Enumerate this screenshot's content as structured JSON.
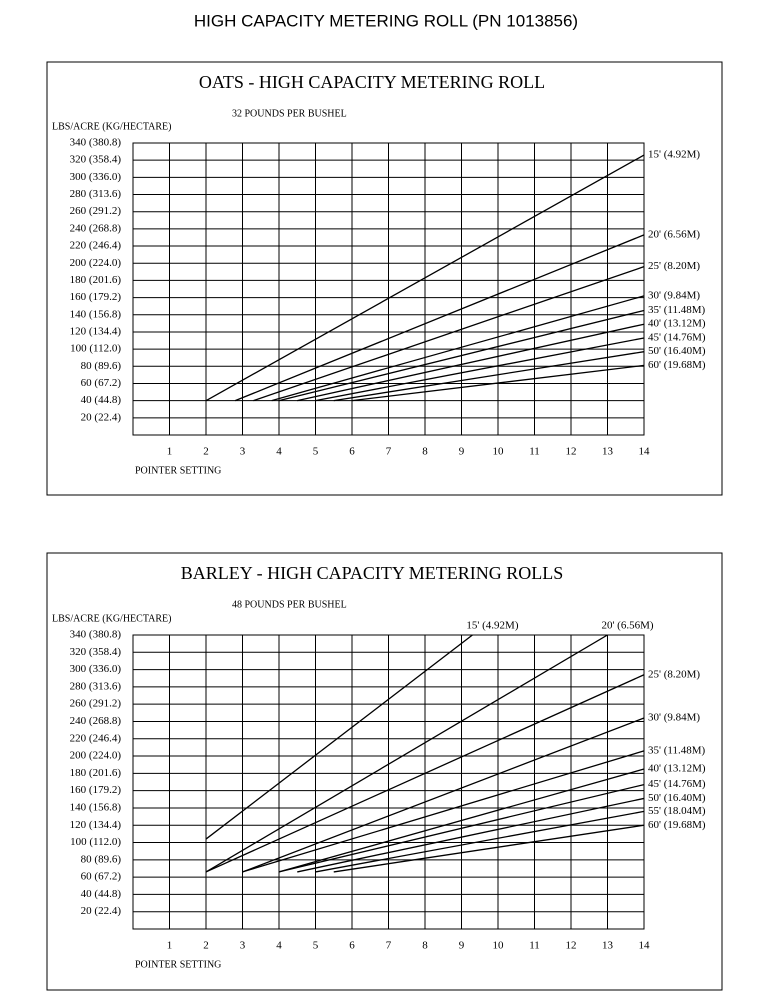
{
  "title": "HIGH CAPACITY METERING ROLL  (PN  1013856)",
  "chart_data": [
    {
      "type": "line",
      "title": "OATS - HIGH CAPACITY METERING ROLL",
      "subtitle": "32 POUNDS PER BUSHEL",
      "y_label": "LBS/ACRE (KG/HECTARE)",
      "x_label": "POINTER SETTING",
      "color": "#000000",
      "grid": true,
      "xlim": [
        0,
        14
      ],
      "xticks": [
        1,
        2,
        3,
        4,
        5,
        6,
        7,
        8,
        9,
        10,
        11,
        12,
        13,
        14
      ],
      "ylim": [
        0,
        340
      ],
      "yticks": [
        {
          "value": 340,
          "label": "340 (380.8)"
        },
        {
          "value": 320,
          "label": "320 (358.4)"
        },
        {
          "value": 300,
          "label": "300 (336.0)"
        },
        {
          "value": 280,
          "label": "280 (313.6)"
        },
        {
          "value": 260,
          "label": "260 (291.2)"
        },
        {
          "value": 240,
          "label": "240 (268.8)"
        },
        {
          "value": 220,
          "label": "220 (246.4)"
        },
        {
          "value": 200,
          "label": "200 (224.0)"
        },
        {
          "value": 180,
          "label": "180 (201.6)"
        },
        {
          "value": 160,
          "label": "160 (179.2)"
        },
        {
          "value": 140,
          "label": "140 (156.8)"
        },
        {
          "value": 120,
          "label": "120 (134.4)"
        },
        {
          "value": 100,
          "label": "100 (112.0)"
        },
        {
          "value": 80,
          "label": "80 (89.6)"
        },
        {
          "value": 60,
          "label": "60 (67.2)"
        },
        {
          "value": 40,
          "label": "40 (44.8)"
        },
        {
          "value": 20,
          "label": "20 (22.4)"
        }
      ],
      "series": [
        {
          "name": "15' (4.92M)",
          "x": [
            2,
            14
          ],
          "values": [
            40,
            326
          ]
        },
        {
          "name": "20' (6.56M)",
          "x": [
            2.8,
            14
          ],
          "values": [
            40,
            233
          ]
        },
        {
          "name": "25' (8.20M)",
          "x": [
            3.3,
            14
          ],
          "values": [
            40,
            196
          ]
        },
        {
          "name": "30' (9.84M)",
          "x": [
            3.8,
            14
          ],
          "values": [
            40,
            162
          ]
        },
        {
          "name": "35' (11.48M)",
          "x": [
            4,
            14
          ],
          "values": [
            40,
            145
          ]
        },
        {
          "name": "40' (13.12M)",
          "x": [
            4.5,
            14
          ],
          "values": [
            40,
            129
          ]
        },
        {
          "name": "45' (14.76M)",
          "x": [
            5,
            14
          ],
          "values": [
            40,
            113
          ]
        },
        {
          "name": "50' (16.40M)",
          "x": [
            5.5,
            14
          ],
          "values": [
            40,
            97
          ]
        },
        {
          "name": "60' (19.68M)",
          "x": [
            6,
            14
          ],
          "values": [
            40,
            81
          ]
        }
      ]
    },
    {
      "type": "line",
      "title": "BARLEY - HIGH CAPACITY METERING ROLLS",
      "subtitle": "48 POUNDS PER BUSHEL",
      "y_label": "LBS/ACRE (KG/HECTARE)",
      "x_label": "POINTER SETTING",
      "color": "#000000",
      "grid": true,
      "xlim": [
        0,
        14
      ],
      "xticks": [
        1,
        2,
        3,
        4,
        5,
        6,
        7,
        8,
        9,
        10,
        11,
        12,
        13,
        14
      ],
      "ylim": [
        0,
        340
      ],
      "yticks": [
        {
          "value": 340,
          "label": "340 (380.8)"
        },
        {
          "value": 320,
          "label": "320 (358.4)"
        },
        {
          "value": 300,
          "label": "300 (336.0)"
        },
        {
          "value": 280,
          "label": "280 (313.6)"
        },
        {
          "value": 260,
          "label": "260 (291.2)"
        },
        {
          "value": 240,
          "label": "240 (268.8)"
        },
        {
          "value": 220,
          "label": "220 (246.4)"
        },
        {
          "value": 200,
          "label": "200 (224.0)"
        },
        {
          "value": 180,
          "label": "180 (201.6)"
        },
        {
          "value": 160,
          "label": "160 (179.2)"
        },
        {
          "value": 140,
          "label": "140 (156.8)"
        },
        {
          "value": 120,
          "label": "120 (134.4)"
        },
        {
          "value": 100,
          "label": "100 (112.0)"
        },
        {
          "value": 80,
          "label": "80 (89.6)"
        },
        {
          "value": 60,
          "label": "60 (67.2)"
        },
        {
          "value": 40,
          "label": "40 (44.8)"
        },
        {
          "value": 20,
          "label": "20 (22.4)"
        }
      ],
      "series": [
        {
          "name": "15' (4.92M)",
          "x": [
            2,
            9.3
          ],
          "values": [
            104,
            340
          ]
        },
        {
          "name": "20' (6.56M)",
          "x": [
            2,
            13
          ],
          "values": [
            66,
            340
          ]
        },
        {
          "name": "25' (8.20M)",
          "x": [
            2,
            14
          ],
          "values": [
            66,
            294
          ]
        },
        {
          "name": "30' (9.84M)",
          "x": [
            3,
            14
          ],
          "values": [
            66,
            244
          ]
        },
        {
          "name": "35' (11.48M)",
          "x": [
            3,
            14
          ],
          "values": [
            66,
            206
          ]
        },
        {
          "name": "40' (13.12M)",
          "x": [
            4,
            14
          ],
          "values": [
            66,
            185
          ]
        },
        {
          "name": "45' (14.76M)",
          "x": [
            4,
            14
          ],
          "values": [
            66,
            167
          ]
        },
        {
          "name": "50' (16.40M)",
          "x": [
            4.5,
            14
          ],
          "values": [
            66,
            151
          ]
        },
        {
          "name": "55' (18.04M)",
          "x": [
            5,
            14
          ],
          "values": [
            66,
            136
          ]
        },
        {
          "name": "60' (19.68M)",
          "x": [
            5.5,
            14
          ],
          "values": [
            66,
            120
          ]
        }
      ]
    }
  ]
}
